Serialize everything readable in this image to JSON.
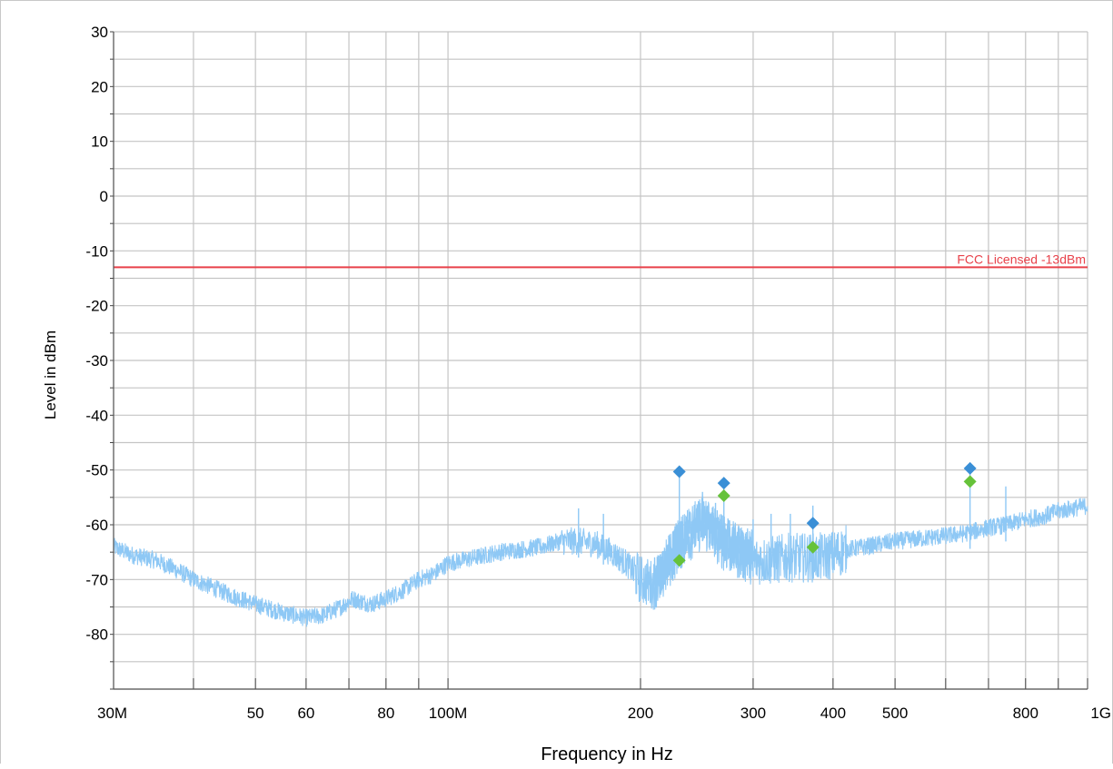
{
  "chart_data": {
    "type": "line",
    "title": "",
    "xlabel": "Frequency in Hz",
    "ylabel": "Level in dBm",
    "x_scale": "log",
    "xlim": [
      30000000,
      1000000000
    ],
    "ylim": [
      -90,
      30
    ],
    "grid": true,
    "x_ticks": [
      {
        "value": 30000000,
        "label": "30M"
      },
      {
        "value": 40000000,
        "label": ""
      },
      {
        "value": 50000000,
        "label": "50"
      },
      {
        "value": 60000000,
        "label": "60"
      },
      {
        "value": 70000000,
        "label": ""
      },
      {
        "value": 80000000,
        "label": "80"
      },
      {
        "value": 90000000,
        "label": ""
      },
      {
        "value": 100000000,
        "label": "100M"
      },
      {
        "value": 200000000,
        "label": "200"
      },
      {
        "value": 300000000,
        "label": "300"
      },
      {
        "value": 400000000,
        "label": "400"
      },
      {
        "value": 500000000,
        "label": "500"
      },
      {
        "value": 600000000,
        "label": ""
      },
      {
        "value": 700000000,
        "label": ""
      },
      {
        "value": 800000000,
        "label": "800"
      },
      {
        "value": 900000000,
        "label": ""
      },
      {
        "value": 1000000000,
        "label": "1G"
      }
    ],
    "y_ticks": [
      {
        "value": 30,
        "label": "30"
      },
      {
        "value": 20,
        "label": "20"
      },
      {
        "value": 10,
        "label": "10"
      },
      {
        "value": 0,
        "label": "0"
      },
      {
        "value": -10,
        "label": "-10"
      },
      {
        "value": -20,
        "label": "-20"
      },
      {
        "value": -30,
        "label": "-30"
      },
      {
        "value": -40,
        "label": "-40"
      },
      {
        "value": -50,
        "label": "-50"
      },
      {
        "value": -60,
        "label": "-60"
      },
      {
        "value": -70,
        "label": "-70"
      },
      {
        "value": -80,
        "label": "-80"
      }
    ],
    "limit_line": {
      "label": "FCC Licensed -13dBm",
      "value": -13,
      "color": "#e8414a"
    },
    "series": [
      {
        "color": "#8ec8f5",
        "x": [
          30000000,
          32000000,
          35000000,
          38000000,
          40000000,
          43000000,
          46000000,
          50000000,
          55000000,
          60000000,
          64000000,
          68000000,
          71000000,
          73000000,
          76000000,
          80000000,
          85000000,
          90000000,
          95000000,
          100000000,
          110000000,
          120000000,
          130000000,
          140000000,
          150000000,
          160000000,
          170000000,
          180000000,
          190000000,
          200000000,
          210000000,
          215000000,
          220000000,
          230000000,
          240000000,
          250000000,
          260000000,
          270000000,
          280000000,
          290000000,
          300000000,
          320000000,
          340000000,
          360000000,
          380000000,
          400000000,
          420000000,
          450000000,
          500000000,
          550000000,
          600000000,
          650000000,
          700000000,
          750000000,
          800000000,
          850000000,
          900000000,
          950000000,
          1000000000
        ],
        "y": [
          -64,
          -65.5,
          -66.5,
          -68.5,
          -70,
          -71.5,
          -73,
          -74.5,
          -76,
          -77,
          -76.5,
          -75,
          -73.5,
          -74,
          -74.5,
          -73.5,
          -72,
          -70,
          -69,
          -67,
          -66,
          -65,
          -64.5,
          -64,
          -63,
          -63,
          -63.5,
          -65,
          -67,
          -70,
          -71,
          -70.5,
          -68,
          -64,
          -62,
          -60,
          -62,
          -64,
          -65,
          -66,
          -66.5,
          -66.5,
          -66,
          -66,
          -66,
          -65.5,
          -64.5,
          -64,
          -63,
          -62.5,
          -62,
          -61.5,
          -60.5,
          -60,
          -59,
          -58.5,
          -57.5,
          -57,
          -56.5
        ]
      }
    ],
    "markers": [
      {
        "x": 230000000,
        "y": -50.3,
        "color": "#3a8fd6"
      },
      {
        "x": 230000000,
        "y": -66.5,
        "color": "#66c23a"
      },
      {
        "x": 270000000,
        "y": -52.4,
        "color": "#3a8fd6"
      },
      {
        "x": 270000000,
        "y": -54.7,
        "color": "#66c23a"
      },
      {
        "x": 372000000,
        "y": -59.7,
        "color": "#3a8fd6"
      },
      {
        "x": 372000000,
        "y": -64.1,
        "color": "#66c23a"
      },
      {
        "x": 655000000,
        "y": -49.7,
        "color": "#3a8fd6"
      },
      {
        "x": 655000000,
        "y": -52.1,
        "color": "#66c23a"
      }
    ],
    "spikes": [
      {
        "x": 160000000,
        "y": -57
      },
      {
        "x": 175000000,
        "y": -58
      },
      {
        "x": 230000000,
        "y": -50.5
      },
      {
        "x": 250000000,
        "y": -54
      },
      {
        "x": 262000000,
        "y": -56
      },
      {
        "x": 270000000,
        "y": -52.5
      },
      {
        "x": 300000000,
        "y": -59
      },
      {
        "x": 320000000,
        "y": -58
      },
      {
        "x": 343000000,
        "y": -58
      },
      {
        "x": 372000000,
        "y": -56.5
      },
      {
        "x": 655000000,
        "y": -50
      },
      {
        "x": 745000000,
        "y": -53
      }
    ]
  }
}
